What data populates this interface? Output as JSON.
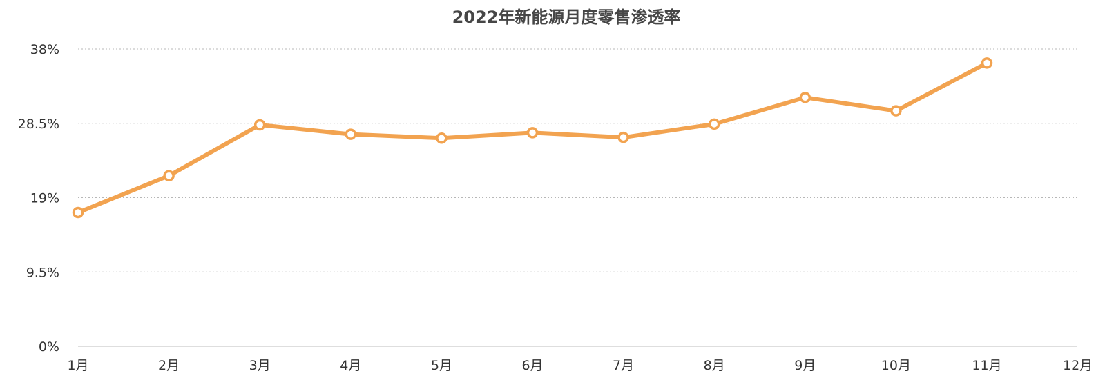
{
  "chart_data": {
    "type": "line",
    "title": "2022年新能源月度零售渗透率",
    "xlabel": "",
    "ylabel": "",
    "categories": [
      "1月",
      "2月",
      "3月",
      "4月",
      "5月",
      "6月",
      "7月",
      "8月",
      "9月",
      "10月",
      "11月",
      "12月"
    ],
    "series": [
      {
        "color": "#F2A350",
        "values": [
          17.1,
          21.8,
          28.3,
          27.1,
          26.6,
          27.3,
          26.7,
          28.4,
          31.8,
          30.1,
          36.2,
          null
        ]
      }
    ],
    "ylim": [
      0,
      38
    ],
    "yticks": [
      0,
      9.5,
      19,
      28.5,
      38
    ],
    "ytick_labels": [
      "0%",
      "9.5%",
      "19%",
      "28.5%",
      "38%"
    ],
    "grid": true,
    "legend": "none"
  }
}
